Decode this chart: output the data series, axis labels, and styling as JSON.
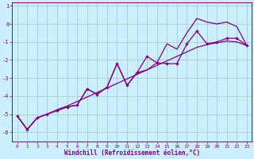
{
  "xlabel": "Windchill (Refroidissement éolien,°C)",
  "bg_color": "#cceeff",
  "line_color": "#800080",
  "grid_color": "#99ccbb",
  "xlim": [
    -0.5,
    23.5
  ],
  "ylim": [
    -6.5,
    1.2
  ],
  "xticks": [
    0,
    1,
    2,
    3,
    4,
    5,
    6,
    7,
    8,
    9,
    10,
    11,
    12,
    13,
    14,
    15,
    16,
    17,
    18,
    19,
    20,
    21,
    22,
    23
  ],
  "yticks": [
    -6,
    -5,
    -4,
    -3,
    -2,
    -1,
    0,
    1
  ],
  "line_smooth_x": [
    0,
    1,
    2,
    3,
    4,
    5,
    6,
    7,
    8,
    9,
    10,
    11,
    12,
    13,
    14,
    15,
    16,
    17,
    18,
    19,
    20,
    21,
    22,
    23
  ],
  "line_smooth_y": [
    -5.1,
    -5.85,
    -5.2,
    -5.0,
    -4.75,
    -4.55,
    -4.3,
    -4.05,
    -3.8,
    -3.55,
    -3.3,
    -3.05,
    -2.8,
    -2.55,
    -2.3,
    -2.05,
    -1.8,
    -1.55,
    -1.3,
    -1.15,
    -1.05,
    -0.95,
    -1.0,
    -1.2
  ],
  "line_jagged_x": [
    0,
    1,
    2,
    3,
    4,
    5,
    6,
    7,
    8,
    9,
    10,
    11,
    12,
    13,
    14,
    15,
    16,
    17,
    18,
    19,
    20,
    21,
    22,
    23
  ],
  "line_jagged_y": [
    -5.1,
    -5.85,
    -5.2,
    -5.0,
    -4.8,
    -4.6,
    -4.5,
    -3.6,
    -3.9,
    -3.5,
    -2.2,
    -3.4,
    -2.7,
    -1.8,
    -2.15,
    -2.2,
    -2.2,
    -1.1,
    -0.4,
    -1.1,
    -1.0,
    -0.8,
    -0.8,
    -1.2
  ],
  "line_upper_x": [
    0,
    1,
    2,
    3,
    4,
    5,
    6,
    7,
    8,
    9,
    10,
    11,
    12,
    13,
    14,
    15,
    16,
    17,
    18,
    19,
    20,
    21,
    22,
    23
  ],
  "line_upper_y": [
    -5.1,
    -5.85,
    -5.2,
    -5.0,
    -4.8,
    -4.6,
    -4.5,
    -3.6,
    -3.9,
    -3.5,
    -2.2,
    -3.4,
    -2.7,
    -2.55,
    -2.15,
    -1.1,
    -1.4,
    -0.5,
    0.3,
    0.1,
    0.0,
    0.1,
    -0.15,
    -1.2
  ]
}
